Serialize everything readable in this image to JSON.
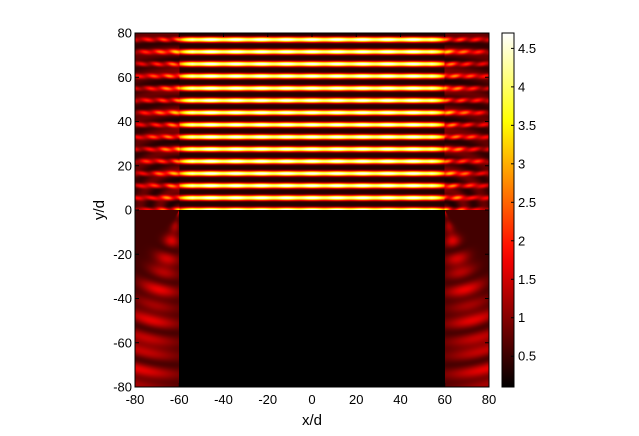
{
  "chart_data": {
    "type": "heatmap",
    "title": "",
    "xlabel": "x/d",
    "ylabel": "y/d",
    "xlim": [
      -80,
      80
    ],
    "ylim": [
      -80,
      80
    ],
    "xticks": [
      "-80",
      "-60",
      "-40",
      "-20",
      "0",
      "20",
      "40",
      "60",
      "80"
    ],
    "yticks": [
      "-80",
      "-60",
      "-40",
      "-20",
      "0",
      "20",
      "40",
      "60",
      "80"
    ],
    "colorbar": {
      "colormap": "hot",
      "range": [
        0.1,
        4.7
      ],
      "ticks": [
        "0.5",
        "1",
        "1.5",
        "2",
        "2.5",
        "3",
        "3.5",
        "4",
        "4.5"
      ]
    },
    "features": {
      "slab_x_range": [
        -60,
        60
      ],
      "slab_top_y": 0,
      "fringe_count_above_slab": 15,
      "fringe_period_y": 5.5,
      "field_inside_slab": 0.1,
      "peak_value": 4.7,
      "grid": false,
      "colors": {
        "background": "#ffffff",
        "colormap_low": "#000000",
        "colormap_mid": "#ff0000",
        "colormap_high": "#ffffff"
      }
    }
  }
}
